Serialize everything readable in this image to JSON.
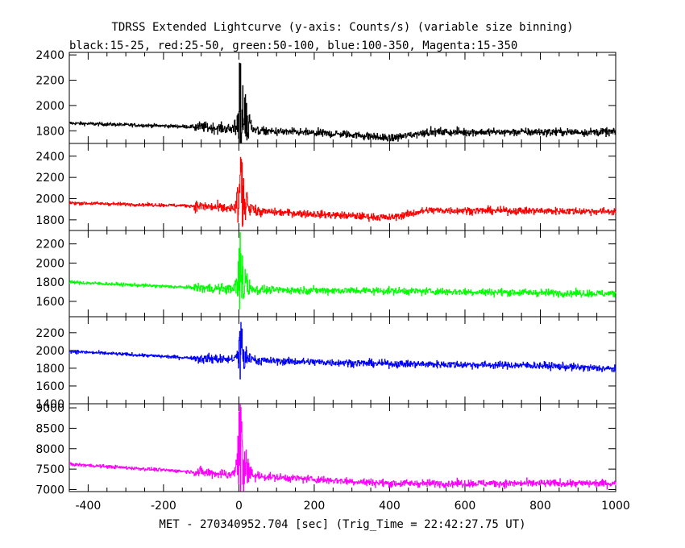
{
  "chart_data": {
    "type": "line",
    "title": "TDRSS Extended Lightcurve (y-axis: Counts/s) (variable size binning)",
    "subtitle": "black:15-25, red:25-50, green:50-100, blue:100-350, Magenta:15-350",
    "xlabel": "MET - 270340952.704 [sec] (Trig_Time = 22:42:27.75 UT)",
    "xlim": [
      -450,
      1000
    ],
    "x_ticks": [
      -400,
      -200,
      0,
      200,
      400,
      600,
      800,
      1000
    ],
    "grid": false,
    "panels": [
      {
        "name": "black:15-25",
        "color": "#000000",
        "ylim": [
          1700,
          2420
        ],
        "y_ticks": [
          1800,
          2000,
          2200,
          2400
        ],
        "baseline": [
          [
            -450,
            1860
          ],
          [
            -100,
            1830
          ],
          [
            50,
            1800
          ],
          [
            300,
            1770
          ],
          [
            400,
            1740
          ],
          [
            500,
            1790
          ],
          [
            1000,
            1790
          ]
        ],
        "peak": 2400
      },
      {
        "name": "red:25-50",
        "color": "#ff0000",
        "ylim": [
          1700,
          2520
        ],
        "y_ticks": [
          1800,
          2000,
          2200,
          2400
        ],
        "baseline": [
          [
            -450,
            1960
          ],
          [
            -100,
            1930
          ],
          [
            50,
            1880
          ],
          [
            400,
            1820
          ],
          [
            500,
            1890
          ],
          [
            1000,
            1880
          ]
        ],
        "peak": 2400
      },
      {
        "name": "green:50-100",
        "color": "#00ff00",
        "ylim": [
          1440,
          2340
        ],
        "y_ticks": [
          1600,
          1800,
          2000,
          2200
        ],
        "baseline": [
          [
            -450,
            1800
          ],
          [
            -100,
            1740
          ],
          [
            50,
            1720
          ],
          [
            400,
            1710
          ],
          [
            1000,
            1680
          ]
        ],
        "peak": 2200
      },
      {
        "name": "blue:100-350",
        "color": "#0000ff",
        "ylim": [
          1400,
          2380
        ],
        "y_ticks": [
          1400,
          1600,
          1800,
          2000,
          2200
        ],
        "baseline": [
          [
            -450,
            1990
          ],
          [
            -100,
            1910
          ],
          [
            100,
            1880
          ],
          [
            400,
            1850
          ],
          [
            800,
            1830
          ],
          [
            1000,
            1790
          ]
        ],
        "peak": 2300
      },
      {
        "name": "Magenta:15-350",
        "color": "#ff00ff",
        "ylim": [
          6950,
          9100
        ],
        "y_ticks": [
          7000,
          7500,
          8000,
          8500,
          9000
        ],
        "baseline": [
          [
            -450,
            7620
          ],
          [
            -100,
            7420
          ],
          [
            100,
            7300
          ],
          [
            400,
            7150
          ],
          [
            1000,
            7150
          ]
        ],
        "peak": 9000
      }
    ]
  }
}
